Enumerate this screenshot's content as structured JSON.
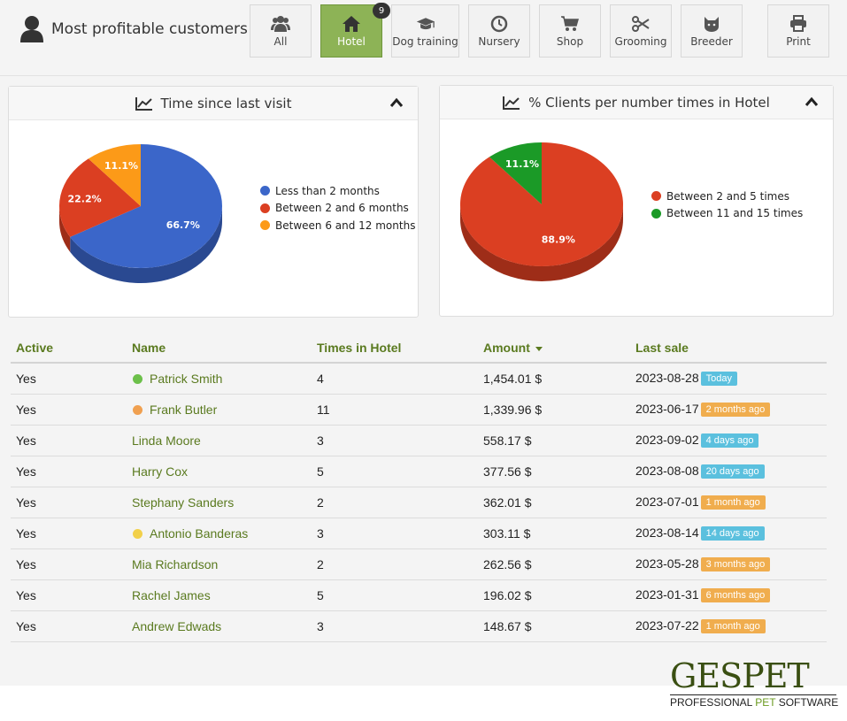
{
  "header": {
    "title": "Most profitable customers"
  },
  "tabs": [
    {
      "label": "All",
      "icon": "users-icon"
    },
    {
      "label": "Hotel",
      "icon": "house-icon",
      "badge": "9",
      "active": true
    },
    {
      "label": "Dog training",
      "icon": "graduation-cap-icon"
    },
    {
      "label": "Nursery",
      "icon": "clock-icon"
    },
    {
      "label": "Shop",
      "icon": "cart-icon"
    },
    {
      "label": "Grooming",
      "icon": "scissors-icon"
    },
    {
      "label": "Breeder",
      "icon": "cat-icon"
    },
    {
      "label": "Print",
      "icon": "printer-icon"
    }
  ],
  "panels": {
    "left": {
      "title": "Time since last visit"
    },
    "right": {
      "title": "% Clients per number times in Hotel"
    }
  },
  "chart_data": [
    {
      "type": "pie",
      "title": "Time since last visit",
      "categories": [
        "Less than 2 months",
        "Between 2 and 6 months",
        "Between 6 and 12 months"
      ],
      "values": [
        66.7,
        22.2,
        11.1
      ],
      "labels": [
        "66.7%",
        "22.2%",
        "11.1%"
      ],
      "colors": [
        "#3b66c9",
        "#db3f22",
        "#fc9a18"
      ],
      "legend": "right"
    },
    {
      "type": "pie",
      "title": "% Clients per number times in Hotel",
      "categories": [
        "Between 2 and 5 times",
        "Between 11 and 15 times"
      ],
      "values": [
        88.9,
        11.1
      ],
      "labels": [
        "88.9%",
        "11.1%"
      ],
      "colors": [
        "#db3f22",
        "#1b9a27"
      ],
      "legend": "right"
    }
  ],
  "table": {
    "columns": [
      "Active",
      "Name",
      "Times in Hotel",
      "Amount",
      "Last sale"
    ],
    "rows": [
      {
        "active": "Yes",
        "name": "Patrick Smith",
        "dot": "#6cc04a",
        "times": "4",
        "amount": "1,454.01 $",
        "date": "2023-08-28",
        "ago": "Today",
        "ago_color": "#5bc0de"
      },
      {
        "active": "Yes",
        "name": "Frank Butler",
        "dot": "#f0a050",
        "times": "11",
        "amount": "1,339.96 $",
        "date": "2023-06-17",
        "ago": "2 months ago",
        "ago_color": "#f0ad4e"
      },
      {
        "active": "Yes",
        "name": "Linda Moore",
        "dot": "",
        "times": "3",
        "amount": "558.17 $",
        "date": "2023-09-02",
        "ago": "4 days ago",
        "ago_color": "#5bc0de"
      },
      {
        "active": "Yes",
        "name": "Harry Cox",
        "dot": "",
        "times": "5",
        "amount": "377.56 $",
        "date": "2023-08-08",
        "ago": "20 days ago",
        "ago_color": "#5bc0de"
      },
      {
        "active": "Yes",
        "name": "Stephany Sanders",
        "dot": "",
        "times": "2",
        "amount": "362.01 $",
        "date": "2023-07-01",
        "ago": "1 month ago",
        "ago_color": "#f0ad4e"
      },
      {
        "active": "Yes",
        "name": "Antonio Banderas",
        "dot": "#f2d04a",
        "times": "3",
        "amount": "303.11 $",
        "date": "2023-08-14",
        "ago": "14 days ago",
        "ago_color": "#5bc0de"
      },
      {
        "active": "Yes",
        "name": "Mia Richardson",
        "dot": "",
        "times": "2",
        "amount": "262.56 $",
        "date": "2023-05-28",
        "ago": "3 months ago",
        "ago_color": "#f0ad4e"
      },
      {
        "active": "Yes",
        "name": "Rachel James",
        "dot": "",
        "times": "5",
        "amount": "196.02 $",
        "date": "2023-01-31",
        "ago": "6 months ago",
        "ago_color": "#f0ad4e"
      },
      {
        "active": "Yes",
        "name": "Andrew Edwads",
        "dot": "",
        "times": "3",
        "amount": "148.67 $",
        "date": "2023-07-22",
        "ago": "1 month ago",
        "ago_color": "#f0ad4e"
      }
    ]
  },
  "logo": {
    "word": "GESPET",
    "tag_a": "PROFESSIONAL ",
    "tag_b": "PET",
    "tag_c": " SOFTWARE"
  }
}
